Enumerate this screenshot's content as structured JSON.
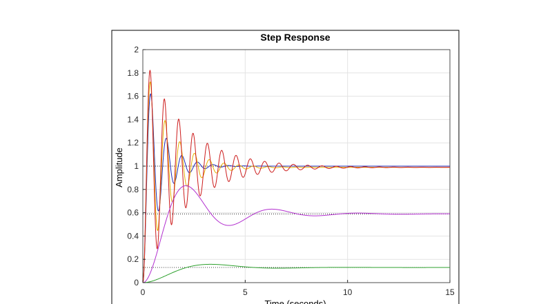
{
  "chart_data": {
    "type": "line",
    "title": "Step Response",
    "xlabel": "Time (seconds)",
    "ylabel": "Amplitude",
    "xlim": [
      0,
      15
    ],
    "ylim": [
      0,
      2
    ],
    "xticks": [
      0,
      5,
      10,
      15
    ],
    "yticks": [
      0,
      0.2,
      0.4,
      0.6,
      0.8,
      1,
      1.2,
      1.4,
      1.6,
      1.8,
      2
    ],
    "xtick_labels": [
      "0",
      "5",
      "10",
      "15"
    ],
    "ytick_labels": [
      "0",
      "0.2",
      "0.4",
      "0.6",
      "0.8",
      "1",
      "1.2",
      "1.4",
      "1.6",
      "1.8",
      "2"
    ],
    "grid": true,
    "legend": "none",
    "steady_state_lines": [
      1.0,
      0.59,
      0.13
    ],
    "series": [
      {
        "color": "#1f2bb8",
        "model": {
          "steady": 1.0,
          "peak_time": 0.38,
          "overshoot": 0.62
        }
      },
      {
        "color": "#e6b000",
        "model": {
          "steady": 0.99,
          "peak_time": 0.36,
          "overshoot": 0.74
        }
      },
      {
        "color": "#cc1a1a",
        "model": {
          "steady": 0.99,
          "peak_time": 0.35,
          "overshoot": 0.84,
          "t_max": 15
        }
      },
      {
        "color": "#b22fcf",
        "model": {
          "steady": 0.59,
          "peak_time": 2.1,
          "overshoot": 0.41,
          "t_max": 15
        }
      },
      {
        "color": "#2ca02c",
        "model": {
          "steady": 0.13,
          "peak_time": 3.3,
          "overshoot": 0.21,
          "t_max": 15
        }
      }
    ]
  }
}
